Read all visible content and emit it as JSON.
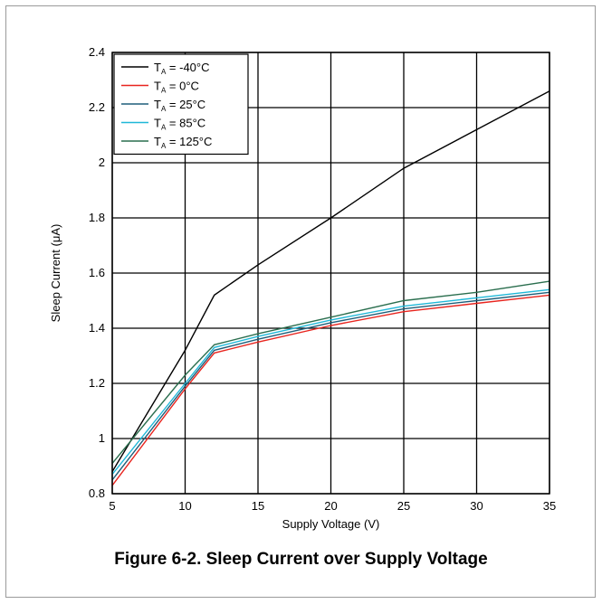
{
  "caption": "Figure 6-2. Sleep Current over Supply Voltage",
  "chart_data": {
    "type": "line",
    "title": "Figure 6-2. Sleep Current over Supply Voltage",
    "xlabel": "Supply Voltage (V)",
    "ylabel_prefix": "Sleep Current (",
    "ylabel_mu": "μ",
    "ylabel_suffix": "A)",
    "xlim": [
      5,
      35
    ],
    "ylim": [
      0.8,
      2.4
    ],
    "x_ticks": [
      5,
      10,
      15,
      20,
      25,
      30,
      35
    ],
    "y_ticks": [
      0.8,
      1,
      1.2,
      1.4,
      1.6,
      1.8,
      2,
      2.2,
      2.4
    ],
    "grid": true,
    "legend_position": "top-left",
    "series": [
      {
        "name": "TA = -40°C",
        "label_main": "T",
        "label_sub": "A",
        "label_rest": " = -40°C",
        "color": "#000000",
        "x": [
          5,
          10,
          12,
          15,
          20,
          25,
          30,
          35
        ],
        "y": [
          0.88,
          1.32,
          1.52,
          1.63,
          1.8,
          1.98,
          2.12,
          2.26
        ]
      },
      {
        "name": "TA = 0°C",
        "label_main": "T",
        "label_sub": "A",
        "label_rest": " = 0°C",
        "color": "#e8251f",
        "x": [
          5,
          10,
          12,
          15,
          20,
          25,
          30,
          35
        ],
        "y": [
          0.83,
          1.18,
          1.31,
          1.35,
          1.41,
          1.46,
          1.49,
          1.52
        ]
      },
      {
        "name": "TA = 25°C",
        "label_main": "T",
        "label_sub": "A",
        "label_rest": " = 25°C",
        "color": "#1f5f7a",
        "x": [
          5,
          10,
          12,
          15,
          20,
          25,
          30,
          35
        ],
        "y": [
          0.85,
          1.19,
          1.32,
          1.36,
          1.42,
          1.47,
          1.5,
          1.53
        ]
      },
      {
        "name": "TA = 85°C",
        "label_main": "T",
        "label_sub": "A",
        "label_rest": " = 85°C",
        "color": "#1fb8d8",
        "x": [
          5,
          10,
          12,
          15,
          20,
          25,
          30,
          35
        ],
        "y": [
          0.87,
          1.2,
          1.33,
          1.37,
          1.43,
          1.48,
          1.51,
          1.54
        ]
      },
      {
        "name": "TA = 125°C",
        "label_main": "T",
        "label_sub": "A",
        "label_rest": " = 125°C",
        "color": "#2a6e4e",
        "x": [
          5,
          10,
          12,
          15,
          20,
          25,
          30,
          35
        ],
        "y": [
          0.91,
          1.23,
          1.34,
          1.38,
          1.44,
          1.5,
          1.53,
          1.57
        ]
      }
    ]
  }
}
